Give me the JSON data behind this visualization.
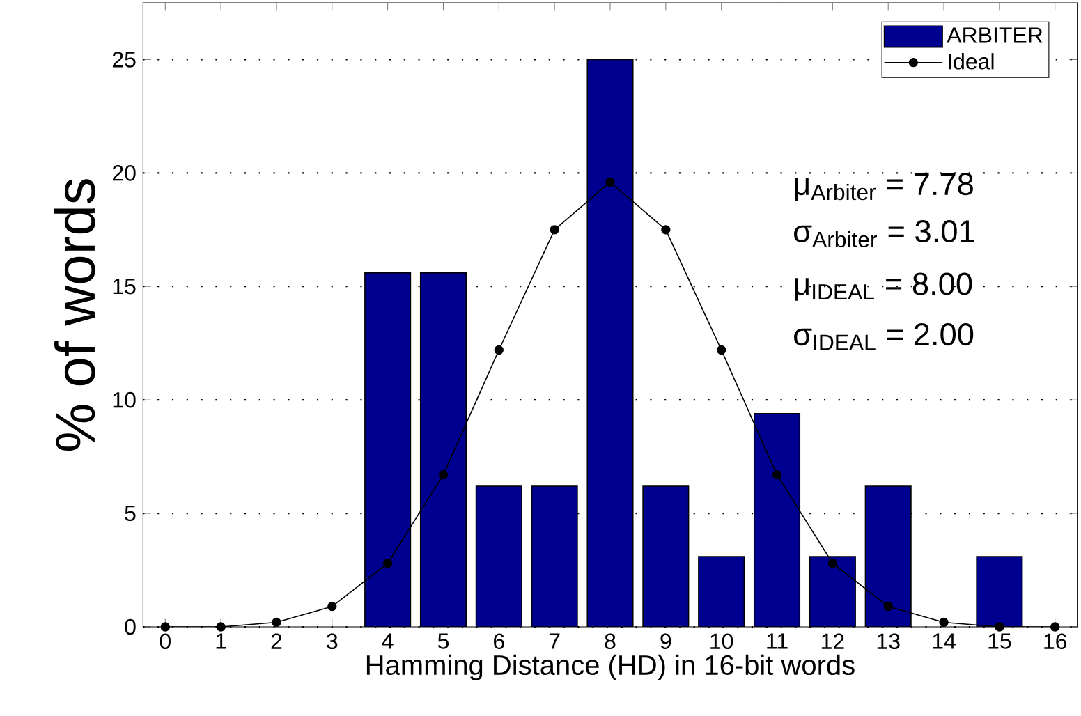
{
  "chart_data": {
    "type": "bar",
    "xlabel": "Hamming Distance (HD) in 16-bit words",
    "ylabel": "% of words",
    "x": [
      0,
      1,
      2,
      3,
      4,
      5,
      6,
      7,
      8,
      9,
      10,
      11,
      12,
      13,
      14,
      15,
      16
    ],
    "series": [
      {
        "name": "ARBITER",
        "color": "#000090",
        "values": [
          null,
          null,
          null,
          null,
          15.6,
          15.6,
          6.2,
          6.2,
          25,
          6.2,
          3.1,
          9.4,
          3.1,
          6.2,
          null,
          3.1,
          null
        ]
      },
      {
        "name": "Ideal",
        "type": "line",
        "color": "#000000",
        "marker": "circle",
        "values": [
          0.0,
          0.0,
          0.2,
          0.9,
          2.8,
          6.7,
          12.2,
          17.5,
          19.6,
          17.5,
          12.2,
          6.7,
          2.8,
          0.9,
          0.2,
          0.0,
          0.0
        ]
      }
    ],
    "xlim": [
      -0.4,
      16.4
    ],
    "ylim": [
      0,
      27.5
    ],
    "xticks": [
      0,
      1,
      2,
      3,
      4,
      5,
      6,
      7,
      8,
      9,
      10,
      11,
      12,
      13,
      14,
      15,
      16
    ],
    "yticks": [
      0,
      5,
      10,
      15,
      20,
      25
    ],
    "grid": "y",
    "legend": "top right",
    "annotations": [
      "μ$_{Arbiter}$ = 7.78",
      "σ$_{Arbiter}$ = 3.01",
      "μ$_{IDEAL}$ = 8.00",
      "σ$_{IDEAL}$ = 2.00"
    ]
  }
}
